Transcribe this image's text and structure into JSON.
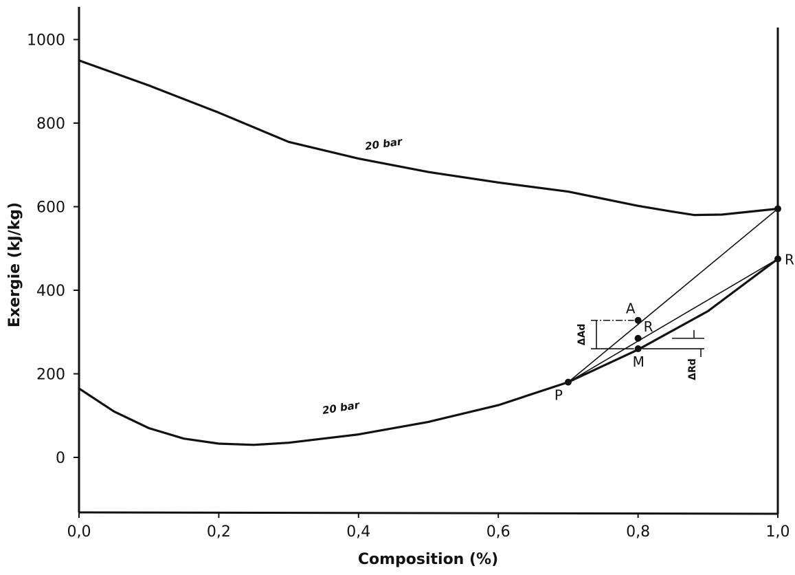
{
  "chart_data": {
    "type": "line",
    "xlabel": "Composition (%)",
    "ylabel": "Exergie (kJ/kg)",
    "xlim": [
      0.0,
      1.0
    ],
    "ylim": [
      -130,
      1050
    ],
    "x_ticks": [
      "0,0",
      "0,2",
      "0,4",
      "0,6",
      "0,8",
      "1,0"
    ],
    "y_ticks": [
      "0",
      "200",
      "400",
      "600",
      "800",
      "1000"
    ],
    "series": [
      {
        "name": "20 bar",
        "x": [
          0.0,
          0.1,
          0.2,
          0.3,
          0.4,
          0.5,
          0.6,
          0.7,
          0.8,
          0.85,
          0.88,
          0.92,
          1.0
        ],
        "y": [
          950,
          890,
          825,
          755,
          715,
          683,
          658,
          636,
          602,
          588,
          580,
          581,
          595
        ]
      },
      {
        "name": "20 bar",
        "x": [
          0.0,
          0.05,
          0.1,
          0.15,
          0.2,
          0.25,
          0.3,
          0.4,
          0.5,
          0.6,
          0.7,
          0.8,
          0.9,
          1.0
        ],
        "y": [
          165,
          110,
          70,
          45,
          33,
          30,
          35,
          55,
          85,
          125,
          180,
          258,
          350,
          475
        ]
      }
    ],
    "chords": [
      {
        "from": [
          0.7,
          180
        ],
        "to": [
          1.0,
          595
        ]
      },
      {
        "from": [
          0.7,
          180
        ],
        "to": [
          1.0,
          475
        ]
      }
    ],
    "points": [
      {
        "label": "P",
        "x": 0.7,
        "y": 180
      },
      {
        "label": "A",
        "x": 0.8,
        "y": 328
      },
      {
        "label": "R",
        "x": 0.8,
        "y": 285
      },
      {
        "label": "M",
        "x": 0.8,
        "y": 260
      },
      {
        "label": "R",
        "x": 1.0,
        "y": 475
      },
      {
        "label": "",
        "x": 1.0,
        "y": 595
      }
    ],
    "annotations": [
      {
        "text": "ΔAd",
        "between": [
          260,
          328
        ]
      },
      {
        "text": "ΔRd",
        "between": [
          260,
          285
        ]
      }
    ],
    "curve_labels": [
      "20 bar",
      "20 bar"
    ]
  }
}
